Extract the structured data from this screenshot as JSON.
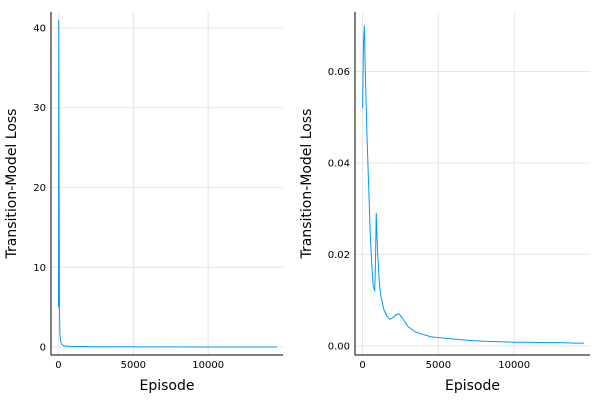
{
  "chart_data": [
    {
      "type": "line",
      "xlabel": "Episode",
      "ylabel": "Transition-Model Loss",
      "xlim": [
        -500,
        15000
      ],
      "ylim": [
        -1,
        42
      ],
      "xticks": [
        0,
        5000,
        10000
      ],
      "yticks": [
        0,
        10,
        20,
        30,
        40
      ],
      "xtick_labels": [
        "0",
        "5000",
        "10000"
      ],
      "ytick_labels": [
        "0",
        "10",
        "20",
        "30",
        "40"
      ],
      "grid": true,
      "legend": "none",
      "series_color": "#009af9",
      "series": [
        {
          "x": [
            0,
            20,
            40,
            60,
            80,
            100,
            130,
            160,
            200,
            250,
            300,
            400,
            500,
            700,
            1000,
            1500,
            2000,
            3000,
            4000,
            6000,
            8000,
            10000,
            12000,
            14600
          ],
          "y": [
            5.0,
            41.0,
            20.0,
            8.0,
            3.0,
            1.5,
            1.0,
            0.6,
            0.4,
            0.3,
            0.2,
            0.15,
            0.12,
            0.1,
            0.08,
            0.06,
            0.05,
            0.04,
            0.03,
            0.02,
            0.02,
            0.01,
            0.01,
            0.01
          ]
        }
      ]
    },
    {
      "type": "line",
      "xlabel": "Episode",
      "ylabel": "Transition-Model Loss",
      "xlim": [
        -500,
        15000
      ],
      "ylim": [
        -0.002,
        0.073
      ],
      "xticks": [
        0,
        5000,
        10000
      ],
      "yticks": [
        0.0,
        0.02,
        0.04,
        0.06
      ],
      "xtick_labels": [
        "0",
        "5000",
        "10000"
      ],
      "ytick_labels": [
        "0.00",
        "0.02",
        "0.04",
        "0.06"
      ],
      "grid": true,
      "legend": "none",
      "series_color": "#009af9",
      "series": [
        {
          "x": [
            0,
            60,
            120,
            180,
            240,
            300,
            400,
            500,
            600,
            700,
            800,
            850,
            900,
            950,
            1000,
            1100,
            1200,
            1400,
            1600,
            1800,
            2000,
            2200,
            2400,
            2600,
            2800,
            3000,
            3500,
            4000,
            4500,
            5000,
            6000,
            7000,
            8000,
            9000,
            10000,
            11000,
            12000,
            13000,
            14000,
            14600
          ],
          "y": [
            0.052,
            0.066,
            0.07,
            0.06,
            0.052,
            0.045,
            0.035,
            0.025,
            0.018,
            0.013,
            0.012,
            0.018,
            0.029,
            0.024,
            0.02,
            0.014,
            0.011,
            0.008,
            0.0065,
            0.0058,
            0.0062,
            0.0068,
            0.007,
            0.0062,
            0.0052,
            0.0042,
            0.003,
            0.0025,
            0.002,
            0.0018,
            0.0015,
            0.0012,
            0.001,
            0.0009,
            0.0008,
            0.0008,
            0.0007,
            0.0007,
            0.0006,
            0.0006
          ]
        }
      ]
    }
  ]
}
